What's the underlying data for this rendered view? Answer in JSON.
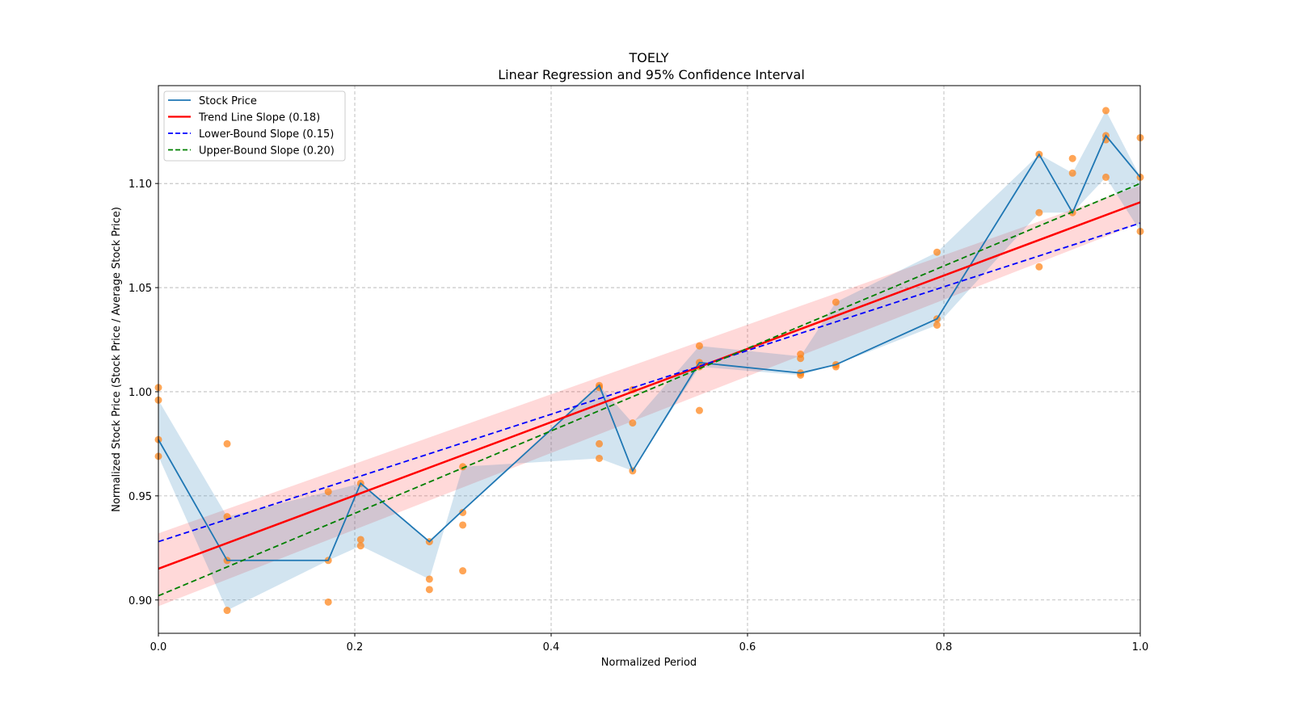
{
  "chart_data": {
    "type": "line",
    "title": "TOELY",
    "subtitle": "Linear Regression and 95% Confidence Interval",
    "xlabel": "Normalized Period",
    "ylabel": "Normalized Stock Price (Stock Price / Average Stock Price)",
    "xlim": [
      0.0,
      1.0
    ],
    "ylim": [
      0.884,
      1.147
    ],
    "xticks": [
      0.0,
      0.2,
      0.4,
      0.6,
      0.8,
      1.0
    ],
    "xtick_labels": [
      "0.0",
      "0.2",
      "0.4",
      "0.6",
      "0.8",
      "1.0"
    ],
    "yticks": [
      0.9,
      0.95,
      1.0,
      1.05,
      1.1
    ],
    "ytick_labels": [
      "0.90",
      "0.95",
      "1.00",
      "1.05",
      "1.10"
    ],
    "grid": true,
    "legend_position": "top-left",
    "legend": [
      {
        "label": "Stock Price",
        "style": "solid",
        "color": "#1f77b4"
      },
      {
        "label": "Trend Line Slope (0.18)",
        "style": "solid",
        "color": "#ff0000"
      },
      {
        "label": "Lower-Bound Slope (0.15)",
        "style": "dashed",
        "color": "#0000ff"
      },
      {
        "label": "Upper-Bound Slope (0.20)",
        "style": "dashed",
        "color": "#008000"
      }
    ],
    "series": [
      {
        "name": "Stock Price",
        "color": "#1f77b4",
        "x": [
          0.0,
          0.07,
          0.173,
          0.206,
          0.276,
          0.31,
          0.449,
          0.483,
          0.551,
          0.654,
          0.69,
          0.793,
          0.897,
          0.931,
          0.965,
          1.0
        ],
        "y": [
          0.977,
          0.919,
          0.919,
          0.956,
          0.928,
          0.943,
          1.003,
          0.962,
          1.014,
          1.009,
          1.013,
          1.035,
          1.114,
          1.086,
          1.123,
          1.103
        ],
        "band_low": [
          0.969,
          0.895,
          0.919,
          0.926,
          0.91,
          0.964,
          0.968,
          0.962,
          1.012,
          1.008,
          1.013,
          1.032,
          1.086,
          1.086,
          1.103,
          1.077
        ],
        "band_high": [
          0.996,
          0.94,
          0.952,
          0.956,
          0.928,
          0.943,
          1.003,
          0.985,
          1.022,
          1.017,
          1.043,
          1.067,
          1.114,
          1.105,
          1.135,
          1.103
        ]
      },
      {
        "name": "Trend Line Slope (0.18)",
        "color": "#ff0000",
        "intercept": 0.915,
        "slope": 0.176,
        "ci_low_intercept": 0.897,
        "ci_low_end": 1.081,
        "ci_high_intercept": 0.932,
        "ci_high_end": 1.099
      },
      {
        "name": "Lower-Bound Slope (0.15)",
        "color": "#0000ff",
        "intercept": 0.928,
        "slope": 0.153
      },
      {
        "name": "Upper-Bound Slope (0.20)",
        "color": "#008000",
        "intercept": 0.902,
        "slope": 0.198
      }
    ],
    "scatter": {
      "name": "Observations",
      "color": "#ff7f0e",
      "points": [
        [
          0.0,
          1.002
        ],
        [
          0.0,
          0.996
        ],
        [
          0.0,
          0.977
        ],
        [
          0.0,
          0.969
        ],
        [
          0.07,
          0.975
        ],
        [
          0.07,
          0.94
        ],
        [
          0.07,
          0.919
        ],
        [
          0.07,
          0.895
        ],
        [
          0.173,
          0.952
        ],
        [
          0.173,
          0.919
        ],
        [
          0.173,
          0.899
        ],
        [
          0.206,
          0.956
        ],
        [
          0.206,
          0.929
        ],
        [
          0.206,
          0.926
        ],
        [
          0.276,
          0.928
        ],
        [
          0.276,
          0.91
        ],
        [
          0.276,
          0.905
        ],
        [
          0.31,
          0.964
        ],
        [
          0.31,
          0.942
        ],
        [
          0.31,
          0.936
        ],
        [
          0.31,
          0.914
        ],
        [
          0.449,
          1.003
        ],
        [
          0.449,
          1.002
        ],
        [
          0.449,
          0.975
        ],
        [
          0.449,
          0.968
        ],
        [
          0.483,
          1.001
        ],
        [
          0.483,
          0.985
        ],
        [
          0.483,
          0.962
        ],
        [
          0.551,
          1.022
        ],
        [
          0.551,
          1.014
        ],
        [
          0.551,
          1.012
        ],
        [
          0.551,
          0.991
        ],
        [
          0.654,
          1.018
        ],
        [
          0.654,
          1.016
        ],
        [
          0.654,
          1.009
        ],
        [
          0.654,
          1.008
        ],
        [
          0.69,
          1.043
        ],
        [
          0.69,
          1.013
        ],
        [
          0.69,
          1.012
        ],
        [
          0.793,
          1.067
        ],
        [
          0.793,
          1.035
        ],
        [
          0.793,
          1.032
        ],
        [
          0.897,
          1.114
        ],
        [
          0.897,
          1.086
        ],
        [
          0.897,
          1.06
        ],
        [
          0.931,
          1.112
        ],
        [
          0.931,
          1.105
        ],
        [
          0.931,
          1.086
        ],
        [
          0.965,
          1.135
        ],
        [
          0.965,
          1.123
        ],
        [
          0.965,
          1.121
        ],
        [
          0.965,
          1.103
        ],
        [
          1.0,
          1.122
        ],
        [
          1.0,
          1.103
        ],
        [
          1.0,
          1.077
        ]
      ]
    }
  }
}
